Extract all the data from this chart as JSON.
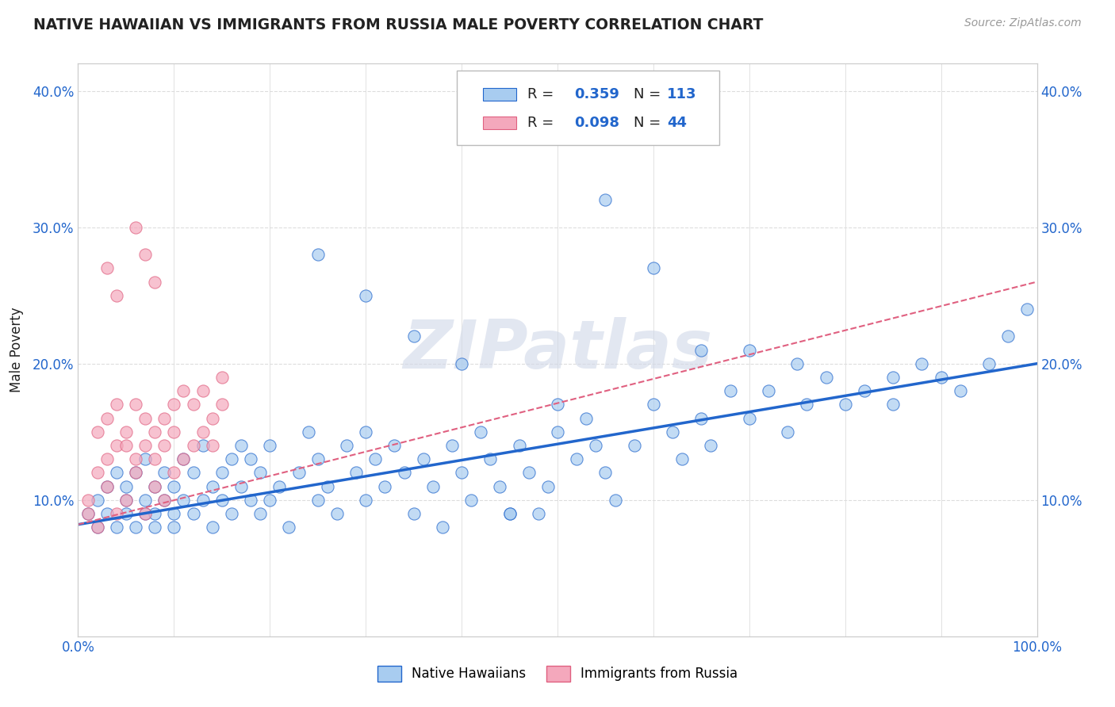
{
  "title": "NATIVE HAWAIIAN VS IMMIGRANTS FROM RUSSIA MALE POVERTY CORRELATION CHART",
  "source": "Source: ZipAtlas.com",
  "ylabel": "Male Poverty",
  "watermark": "ZIPatlas",
  "xmin": 0.0,
  "xmax": 1.0,
  "ymin": 0.0,
  "ymax": 0.42,
  "yticks": [
    0.1,
    0.2,
    0.3,
    0.4
  ],
  "ytick_labels": [
    "10.0%",
    "20.0%",
    "30.0%",
    "40.0%"
  ],
  "xtick_labels": [
    "0.0%",
    "100.0%"
  ],
  "color_blue": "#A8CCF0",
  "color_pink": "#F4A8BC",
  "line_blue": "#2266CC",
  "line_pink": "#E06080",
  "background": "#FFFFFF",
  "grid_color": "#DDDDDD",
  "title_color": "#222222",
  "source_color": "#999999",
  "legend_text_color": "#222222",
  "legend_value_color": "#2266CC",
  "blue_line_y0": 0.082,
  "blue_line_y1": 0.2,
  "pink_line_y0": 0.082,
  "pink_line_y1": 0.26,
  "blue_points_x": [
    0.01,
    0.02,
    0.02,
    0.03,
    0.03,
    0.04,
    0.04,
    0.05,
    0.05,
    0.05,
    0.06,
    0.06,
    0.07,
    0.07,
    0.07,
    0.08,
    0.08,
    0.08,
    0.09,
    0.09,
    0.1,
    0.1,
    0.1,
    0.11,
    0.11,
    0.12,
    0.12,
    0.13,
    0.13,
    0.14,
    0.14,
    0.15,
    0.15,
    0.16,
    0.16,
    0.17,
    0.17,
    0.18,
    0.18,
    0.19,
    0.19,
    0.2,
    0.2,
    0.21,
    0.22,
    0.23,
    0.24,
    0.25,
    0.25,
    0.26,
    0.27,
    0.28,
    0.29,
    0.3,
    0.3,
    0.31,
    0.32,
    0.33,
    0.34,
    0.35,
    0.36,
    0.37,
    0.38,
    0.39,
    0.4,
    0.41,
    0.42,
    0.43,
    0.44,
    0.45,
    0.46,
    0.47,
    0.48,
    0.49,
    0.5,
    0.52,
    0.53,
    0.54,
    0.55,
    0.56,
    0.58,
    0.6,
    0.62,
    0.63,
    0.65,
    0.66,
    0.68,
    0.7,
    0.72,
    0.74,
    0.76,
    0.78,
    0.8,
    0.82,
    0.85,
    0.88,
    0.9,
    0.92,
    0.95,
    0.97,
    0.99,
    0.25,
    0.35,
    0.45,
    0.55,
    0.65,
    0.75,
    0.85,
    0.3,
    0.4,
    0.5,
    0.6,
    0.7
  ],
  "blue_points_y": [
    0.09,
    0.08,
    0.1,
    0.09,
    0.11,
    0.08,
    0.12,
    0.09,
    0.11,
    0.1,
    0.08,
    0.12,
    0.09,
    0.1,
    0.13,
    0.08,
    0.11,
    0.09,
    0.1,
    0.12,
    0.08,
    0.11,
    0.09,
    0.13,
    0.1,
    0.09,
    0.12,
    0.1,
    0.14,
    0.11,
    0.08,
    0.12,
    0.1,
    0.13,
    0.09,
    0.11,
    0.14,
    0.1,
    0.13,
    0.09,
    0.12,
    0.1,
    0.14,
    0.11,
    0.08,
    0.12,
    0.15,
    0.1,
    0.13,
    0.11,
    0.09,
    0.14,
    0.12,
    0.1,
    0.15,
    0.13,
    0.11,
    0.14,
    0.12,
    0.09,
    0.13,
    0.11,
    0.08,
    0.14,
    0.12,
    0.1,
    0.15,
    0.13,
    0.11,
    0.09,
    0.14,
    0.12,
    0.09,
    0.11,
    0.15,
    0.13,
    0.16,
    0.14,
    0.12,
    0.1,
    0.14,
    0.17,
    0.15,
    0.13,
    0.16,
    0.14,
    0.18,
    0.16,
    0.18,
    0.15,
    0.17,
    0.19,
    0.17,
    0.18,
    0.17,
    0.2,
    0.19,
    0.18,
    0.2,
    0.22,
    0.24,
    0.28,
    0.22,
    0.09,
    0.32,
    0.21,
    0.2,
    0.19,
    0.25,
    0.2,
    0.17,
    0.27,
    0.21
  ],
  "pink_points_x": [
    0.01,
    0.01,
    0.02,
    0.02,
    0.02,
    0.03,
    0.03,
    0.03,
    0.04,
    0.04,
    0.04,
    0.05,
    0.05,
    0.05,
    0.06,
    0.06,
    0.06,
    0.07,
    0.07,
    0.07,
    0.08,
    0.08,
    0.08,
    0.09,
    0.09,
    0.09,
    0.1,
    0.1,
    0.1,
    0.11,
    0.11,
    0.12,
    0.12,
    0.13,
    0.13,
    0.14,
    0.14,
    0.15,
    0.15,
    0.03,
    0.04,
    0.06,
    0.07,
    0.08
  ],
  "pink_points_y": [
    0.09,
    0.1,
    0.08,
    0.15,
    0.12,
    0.11,
    0.13,
    0.16,
    0.09,
    0.14,
    0.17,
    0.1,
    0.15,
    0.14,
    0.13,
    0.17,
    0.12,
    0.09,
    0.16,
    0.14,
    0.11,
    0.15,
    0.13,
    0.1,
    0.16,
    0.14,
    0.12,
    0.17,
    0.15,
    0.13,
    0.18,
    0.14,
    0.17,
    0.15,
    0.18,
    0.14,
    0.16,
    0.17,
    0.19,
    0.27,
    0.25,
    0.3,
    0.28,
    0.26
  ]
}
